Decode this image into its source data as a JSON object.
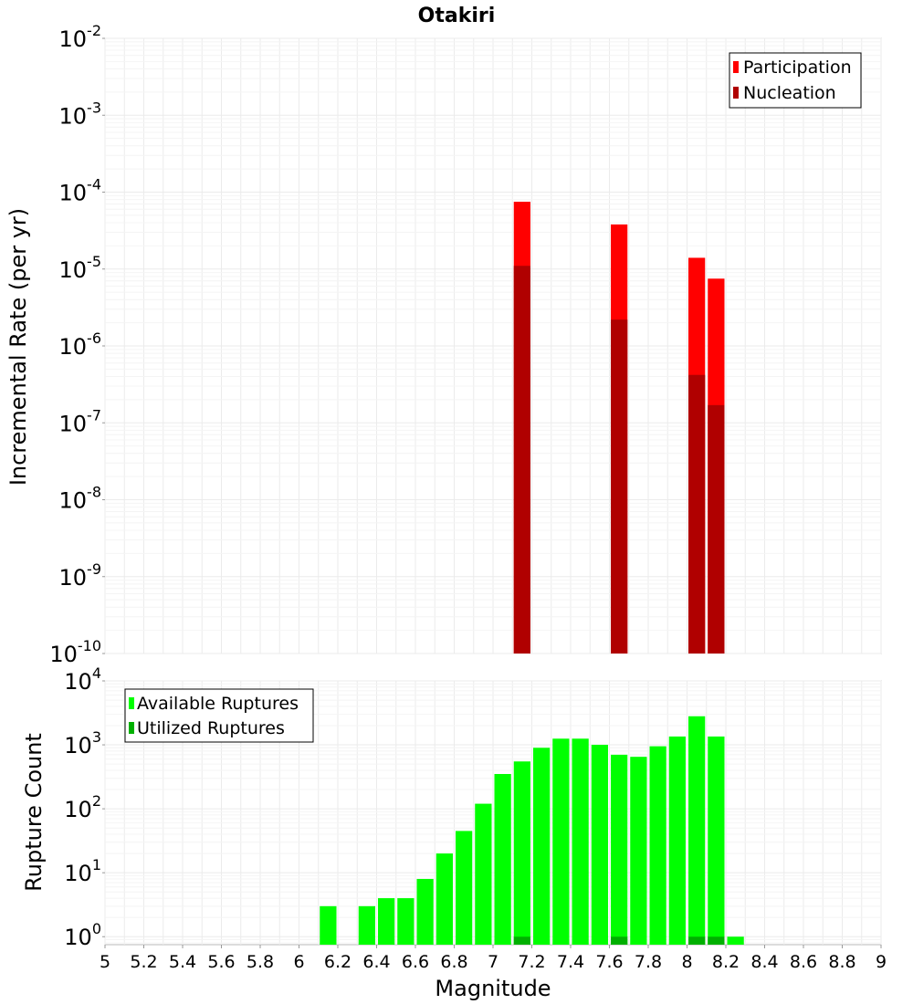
{
  "title": "Otakiri",
  "chart_data": [
    {
      "type": "bar",
      "yscale": "log",
      "xlim": [
        5,
        9
      ],
      "ylim": [
        1e-10,
        0.01
      ],
      "ylabel": "Incremental Rate (per yr)",
      "bin_width": 0.1,
      "legend_position": "top-right",
      "y_ticks": [
        {
          "base": "10",
          "exp": "-10"
        },
        {
          "base": "10",
          "exp": "-9"
        },
        {
          "base": "10",
          "exp": "-8"
        },
        {
          "base": "10",
          "exp": "-7"
        },
        {
          "base": "10",
          "exp": "-6"
        },
        {
          "base": "10",
          "exp": "-5"
        },
        {
          "base": "10",
          "exp": "-4"
        },
        {
          "base": "10",
          "exp": "-3"
        },
        {
          "base": "10",
          "exp": "-2"
        }
      ],
      "series": [
        {
          "name": "Participation",
          "color": "#ff0000",
          "x": [
            7.15,
            7.65,
            8.05,
            8.15
          ],
          "values": [
            7.5e-05,
            3.8e-05,
            1.4e-05,
            7.5e-06
          ]
        },
        {
          "name": "Nucleation",
          "color": "#b00000",
          "x": [
            7.15,
            7.65,
            8.05,
            8.15
          ],
          "values": [
            1.1e-05,
            2.2e-06,
            4.2e-07,
            1.7e-07
          ]
        }
      ]
    },
    {
      "type": "bar",
      "yscale": "log",
      "xlim": [
        5,
        9
      ],
      "ylim": [
        0.75,
        10000
      ],
      "xlabel": "Magnitude",
      "ylabel": "Rupture Count",
      "bin_width": 0.1,
      "legend_position": "top-left",
      "x_ticks": [
        "5",
        "5.2",
        "5.4",
        "5.6",
        "5.8",
        "6",
        "6.2",
        "6.4",
        "6.6",
        "6.8",
        "7",
        "7.2",
        "7.4",
        "7.6",
        "7.8",
        "8",
        "8.2",
        "8.4",
        "8.6",
        "8.8",
        "9"
      ],
      "y_ticks": [
        {
          "base": "10",
          "exp": "0"
        },
        {
          "base": "10",
          "exp": "1"
        },
        {
          "base": "10",
          "exp": "2"
        },
        {
          "base": "10",
          "exp": "3"
        },
        {
          "base": "10",
          "exp": "4"
        }
      ],
      "series": [
        {
          "name": "Available Ruptures",
          "color": "#00ff00",
          "x": [
            6.15,
            6.35,
            6.45,
            6.55,
            6.65,
            6.75,
            6.85,
            6.95,
            7.05,
            7.15,
            7.25,
            7.35,
            7.45,
            7.55,
            7.65,
            7.75,
            7.85,
            7.95,
            8.05,
            8.15,
            8.25
          ],
          "values": [
            3,
            3,
            4,
            4,
            8,
            20,
            45,
            120,
            350,
            550,
            900,
            1250,
            1250,
            1000,
            700,
            650,
            950,
            1350,
            2800,
            1350,
            1
          ]
        },
        {
          "name": "Utilized Ruptures",
          "color": "#00b000",
          "x": [
            7.15,
            7.65,
            8.05,
            8.15
          ],
          "values": [
            1,
            1,
            1,
            1
          ]
        }
      ]
    }
  ]
}
